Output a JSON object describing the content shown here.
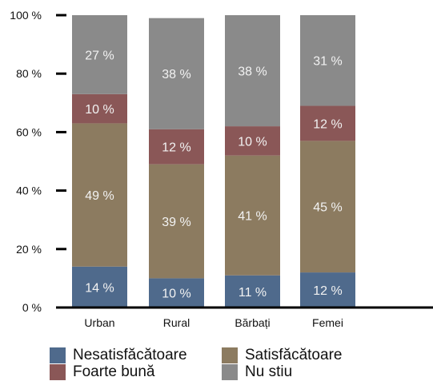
{
  "chart_data": {
    "type": "bar",
    "stacked": true,
    "categories": [
      "Urban",
      "Rural",
      "Bărbați",
      "Femei"
    ],
    "series": [
      {
        "name": "Nesatisfăcătoare",
        "values": [
          14,
          10,
          11,
          12
        ],
        "color": "#4f6a8c",
        "labels": [
          "14 %",
          "10 %",
          "11 %",
          "12 %"
        ]
      },
      {
        "name": "Satisfăcătoare",
        "values": [
          49,
          39,
          41,
          45
        ],
        "color": "#8c7b60",
        "labels": [
          "49 %",
          "39 %",
          "41 %",
          "45 %"
        ]
      },
      {
        "name": "Foarte bună",
        "values": [
          10,
          12,
          10,
          12
        ],
        "color": "#8a5757",
        "labels": [
          "10 %",
          "12 %",
          "10 %",
          "12 %"
        ]
      },
      {
        "name": "Nu stiu",
        "values": [
          27,
          38,
          38,
          31
        ],
        "color": "#8a8a8a",
        "labels": [
          "27 %",
          "38 %",
          "38 %",
          "31 %"
        ]
      }
    ],
    "ylim": [
      0,
      100
    ],
    "yticks": [
      0,
      20,
      40,
      60,
      80,
      100
    ],
    "ytick_labels": [
      "0 %",
      "20 %",
      "40 %",
      "60 %",
      "80 %",
      "100 %"
    ],
    "label_color": "#f2f2f2",
    "legend_position": "bottom",
    "grid": false
  }
}
